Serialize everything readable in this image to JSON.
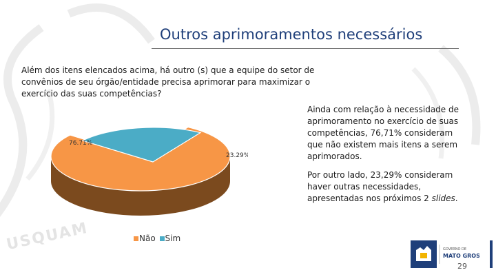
{
  "slide": {
    "title": "Outros aprimoramentos necessários",
    "question": "Além dos itens elencados acima, há outro (s) que a equipe do setor de convênios de seu órgão/entidade precisa aprimorar para maximizar o exercício das suas competências?",
    "watermark_text": "USQUAM",
    "side_paragraph_1": "Ainda com relação à necessidade de aprimoramento no exercício de suas competências, 76,71% consideram que não existem mais itens a serem aprimorados.",
    "side_paragraph_2_main": "Por outro lado, 23,29% consideram haver outras necessidades, apresentadas nos próximos 2 ",
    "side_paragraph_2_italic": "slides",
    "side_paragraph_2_end": ".",
    "logo_small": "GOVERNO DE",
    "logo_name": "MATO GROSSO",
    "page_number": "29"
  },
  "chart_data": {
    "type": "pie",
    "style": "3d-exploded",
    "title": "",
    "categories": [
      "Não",
      "Sim"
    ],
    "values": [
      76.71,
      23.29
    ],
    "data_labels": [
      "76.71%",
      "23.29%"
    ],
    "colors": [
      "#f79646",
      "#4bacc6"
    ],
    "side_colors": [
      "#7b4a1e",
      "#1f5f6e"
    ],
    "legend": "bottom-left"
  }
}
